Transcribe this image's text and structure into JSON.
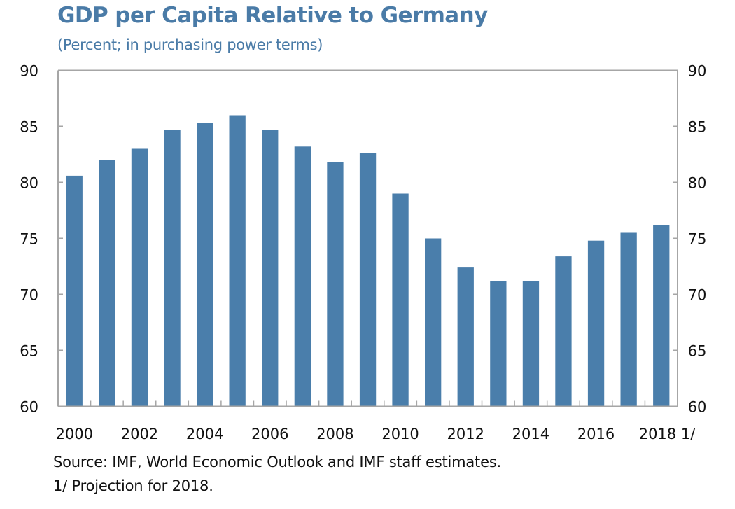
{
  "chart_data": {
    "type": "bar",
    "title": "GDP per Capita Relative to Germany",
    "subtitle": "(Percent; in purchasing power terms)",
    "xlabel": "",
    "ylabel": "",
    "categories": [
      "2000",
      "2001",
      "2002",
      "2003",
      "2004",
      "2005",
      "2006",
      "2007",
      "2008",
      "2009",
      "2010",
      "2011",
      "2012",
      "2013",
      "2014",
      "2015",
      "2016",
      "2017",
      "2018"
    ],
    "values": [
      80.6,
      82.0,
      83.0,
      84.7,
      85.3,
      86.0,
      84.7,
      83.2,
      81.8,
      82.6,
      79.0,
      75.0,
      72.4,
      71.2,
      71.2,
      73.4,
      74.8,
      75.5,
      76.2
    ],
    "x_tick_labels": [
      "2000",
      "2002",
      "2004",
      "2006",
      "2008",
      "2010",
      "2012",
      "2014",
      "2016",
      "2018 1/"
    ],
    "y_ticks": [
      60,
      65,
      70,
      75,
      80,
      85,
      90
    ],
    "ylim": [
      60,
      90
    ],
    "y_axis_right_mirrored": true,
    "grid": false,
    "legend": "none",
    "bar_color": "#4a7eab",
    "source": "Source: IMF, World Economic Outlook and IMF staff estimates.",
    "footnote": "1/ Projection for 2018."
  }
}
